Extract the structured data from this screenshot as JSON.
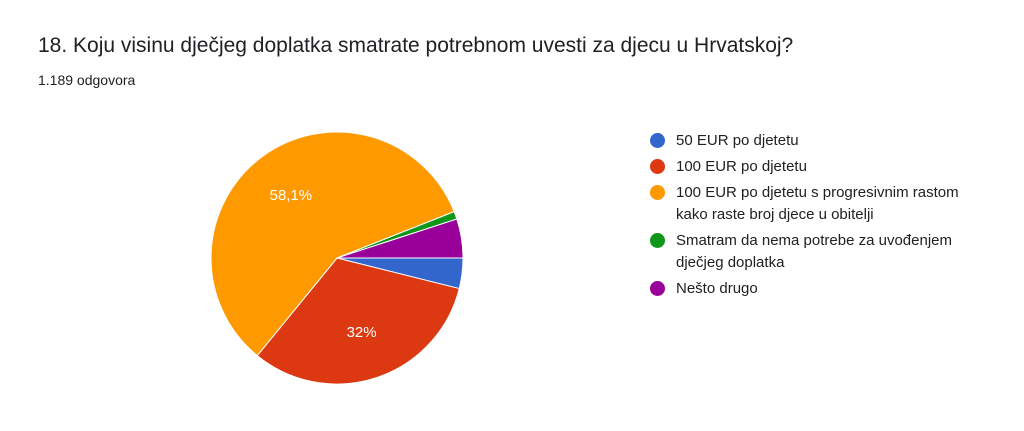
{
  "question": {
    "title": "18. Koju visinu dječjeg doplatka smatrate potrebnom uvesti za djecu u Hrvatskoj?",
    "responses": "1.189 odgovora"
  },
  "chart_data": {
    "type": "pie",
    "title": "18. Koju visinu dječjeg doplatka smatrate potrebnom uvesti za djecu u Hrvatskoj?",
    "legend_position": "right",
    "slices": [
      {
        "label": "50 EUR po djetetu",
        "value": 3.9,
        "color": "#3366cc",
        "display": ""
      },
      {
        "label": "100 EUR po djetetu",
        "value": 32.0,
        "color": "#dc3912",
        "display": "32%"
      },
      {
        "label": "100 EUR po djetetu s progresivnim rastom kako raste broj djece u obitelji",
        "value": 58.1,
        "color": "#ff9900",
        "display": "58,1%"
      },
      {
        "label": "Smatram da nema potrebe za uvođenjem dječjeg doplatka",
        "value": 1.0,
        "color": "#109618",
        "display": ""
      },
      {
        "label": "Nešto drugo",
        "value": 5.0,
        "color": "#990099",
        "display": ""
      }
    ]
  }
}
